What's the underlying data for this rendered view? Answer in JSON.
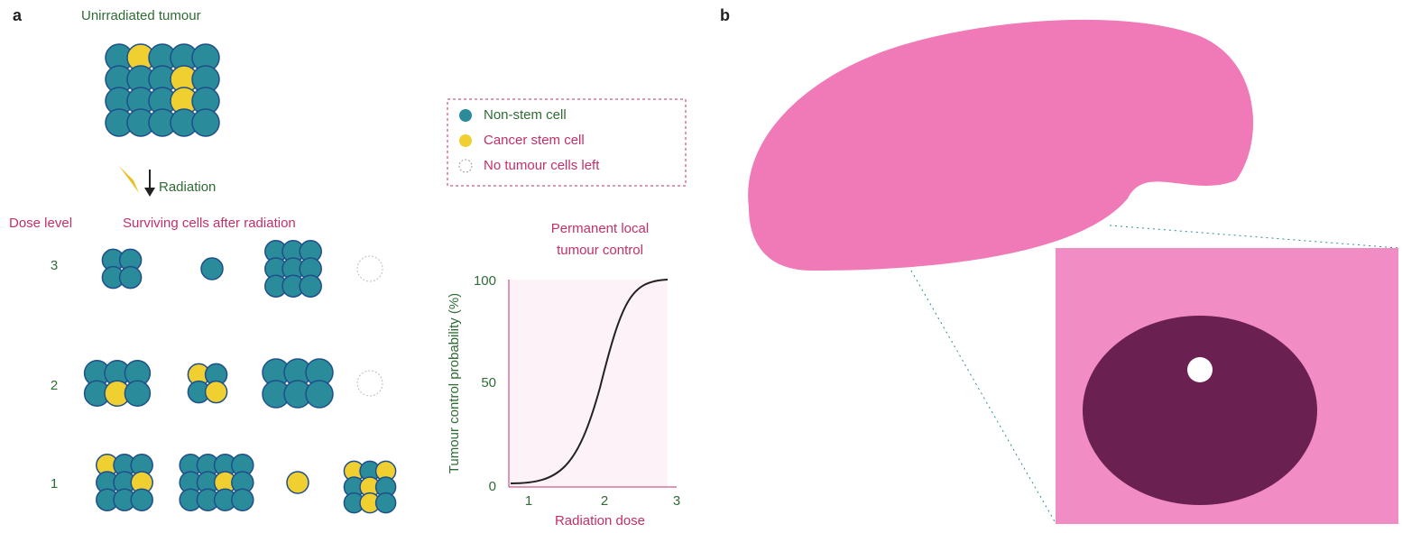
{
  "panel_a": {
    "label": "a",
    "title": "Unirradiated tumour",
    "arrow_label": "Radiation",
    "dose_header": "Dose level",
    "cells_header": "Surviving cells after radiation",
    "dose_levels": [
      3,
      2,
      1
    ],
    "legend": [
      "Non-stem cell",
      "Cancer stem cell",
      "No tumour cells left"
    ],
    "plot": {
      "title_lines": [
        "Permanent local",
        "tumour control"
      ],
      "y_label": "Tumour control probability (%)",
      "x_label": "Radiation dose",
      "y_ticks": [
        0,
        50,
        100
      ],
      "x_ticks": [
        1,
        2,
        3
      ]
    }
  },
  "panel_b": {
    "label": "b"
  }
}
